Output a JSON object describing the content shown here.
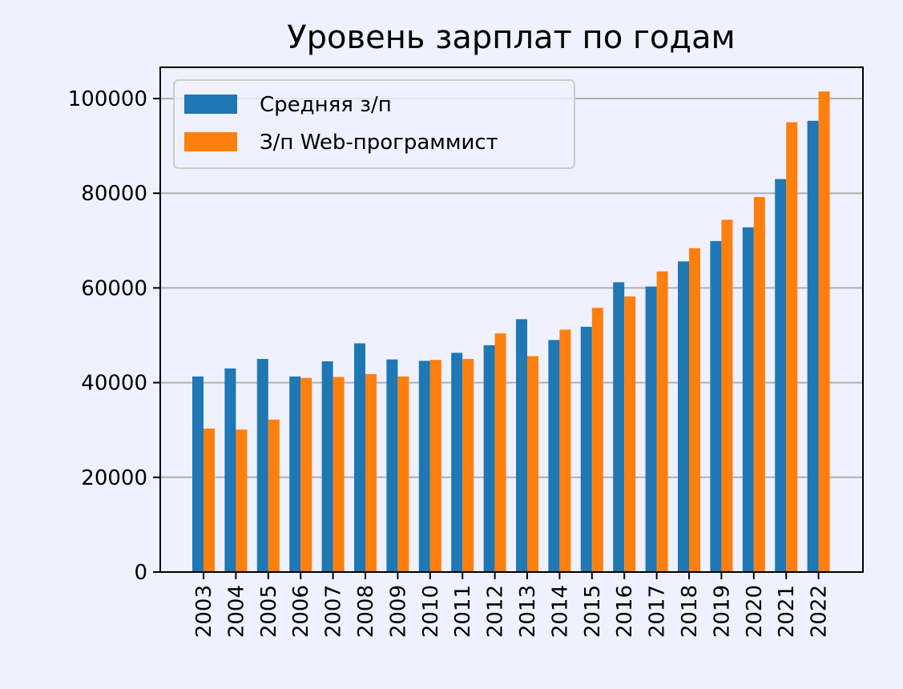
{
  "chart_data": {
    "type": "bar",
    "title": "Уровень зарплат по годам",
    "xlabel": "",
    "ylabel": "",
    "ylim": [
      0,
      106500
    ],
    "yticks": [
      0,
      20000,
      40000,
      60000,
      80000,
      100000
    ],
    "ytick_labels": [
      "0",
      "20000",
      "40000",
      "60000",
      "80000",
      "100000"
    ],
    "grid": "horizontal",
    "legend_position": "top-left",
    "categories": [
      "2003",
      "2004",
      "2005",
      "2006",
      "2007",
      "2008",
      "2009",
      "2010",
      "2011",
      "2012",
      "2013",
      "2014",
      "2015",
      "2016",
      "2017",
      "2018",
      "2019",
      "2020",
      "2021",
      "2022"
    ],
    "series": [
      {
        "name": "Средняя з/п",
        "color": "#1f77b4",
        "values": [
          41300,
          43000,
          45000,
          41300,
          44500,
          48300,
          44900,
          44600,
          46300,
          47900,
          53400,
          49000,
          51800,
          61200,
          60300,
          65600,
          69900,
          72800,
          83000,
          95300
        ]
      },
      {
        "name": "З/п Web-программист",
        "color": "#ff7f0e",
        "values": [
          30300,
          30100,
          32200,
          41000,
          41200,
          41800,
          41300,
          44800,
          45000,
          50400,
          45600,
          51200,
          55800,
          58200,
          63500,
          68400,
          74400,
          79200,
          95000,
          101500
        ]
      }
    ]
  }
}
